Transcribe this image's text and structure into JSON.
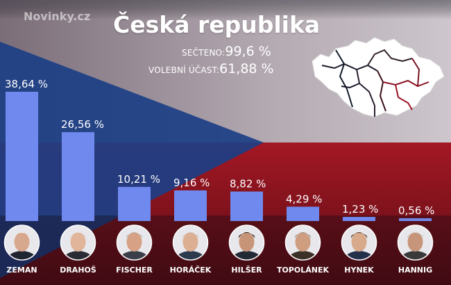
{
  "brand": "Novinky.cz",
  "title": "Česká republika",
  "stats": {
    "counted_label": "SEČTENO:",
    "counted_value": "99,6 %",
    "turnout_label": "VOLEBNÍ ÚČAST:",
    "turnout_value": "61,88 %"
  },
  "colors": {
    "bar": "#7089ee",
    "text": "#ffffff",
    "flag_blue": "#1c3f86",
    "flag_red": "#8e1620",
    "flag_white": "#d8d4d8"
  },
  "icons": {
    "map": "czech-regions-map-icon"
  },
  "chart_data": {
    "type": "bar",
    "categories": [
      "ZEMAN",
      "DRAHOŠ",
      "FISCHER",
      "HORÁČEK",
      "HILŠER",
      "TOPOLÁNEK",
      "HYNEK",
      "HANNIG"
    ],
    "values": [
      38.64,
      26.56,
      10.21,
      9.16,
      8.82,
      4.29,
      1.23,
      0.56
    ],
    "value_labels": [
      "38,64 %",
      "26,56 %",
      "10,21 %",
      "9,16 %",
      "8,82 %",
      "4,29 %",
      "1,23 %",
      "0,56 %"
    ],
    "title": "Česká republika",
    "xlabel": "",
    "ylabel": "",
    "ylim": [
      0,
      38.64
    ],
    "grid": false,
    "legend": "none"
  }
}
